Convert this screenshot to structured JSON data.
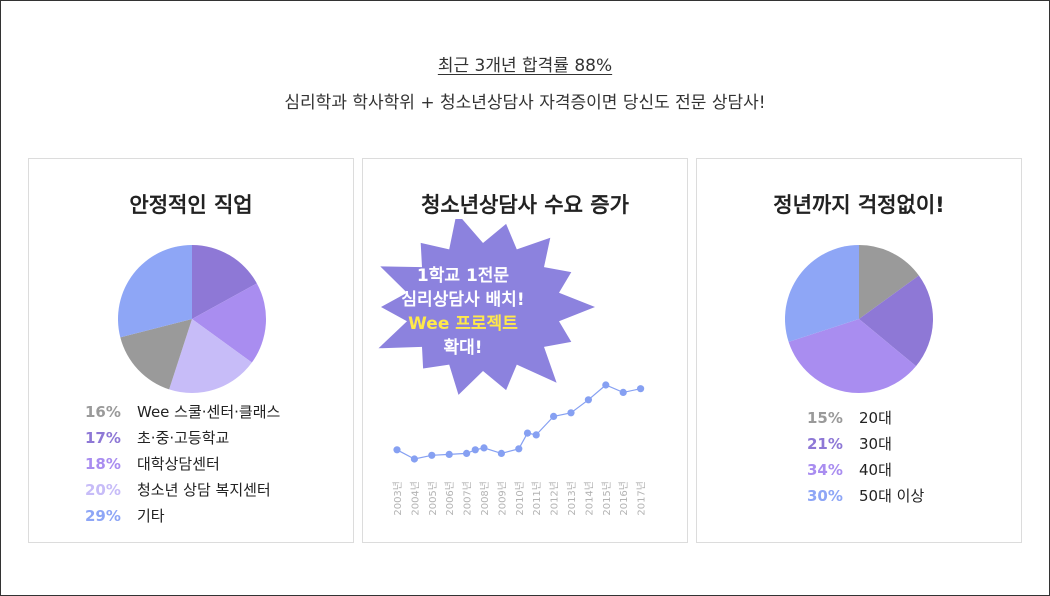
{
  "header": {
    "line1": "최근 3개년 합격률 88%",
    "line2": "심리학과 학사학위 + 청소년상담사 자격증이면 당신도 전문 상담사!"
  },
  "panels": [
    {
      "title": "안정적인 직업"
    },
    {
      "title": "청소년상담사 수요 증가"
    },
    {
      "title": "정년까지 걱정없이!"
    }
  ],
  "burst": {
    "lines": [
      "1학교 1전문",
      "심리상담사 배치!",
      "Wee 프로젝트",
      "확대!"
    ],
    "fill": "#8c82de",
    "highlight": "#ffe94a"
  },
  "chart_data": [
    {
      "type": "pie",
      "title": "",
      "slices": [
        {
          "label": "Wee 스쿨·센터·클래스",
          "value": 16,
          "pct_label": "16%",
          "color": "#9a9a9a"
        },
        {
          "label": "초·중·고등학교",
          "value": 17,
          "pct_label": "17%",
          "color": "#8e78d6"
        },
        {
          "label": "대학상담센터",
          "value": 18,
          "pct_label": "18%",
          "color": "#a98df0"
        },
        {
          "label": "청소년 상담 복지센터",
          "value": 20,
          "pct_label": "20%",
          "color": "#c7bcf8"
        },
        {
          "label": "기타",
          "value": 29,
          "pct_label": "29%",
          "color": "#8ea6f6"
        }
      ]
    },
    {
      "type": "line",
      "title": "",
      "categories": [
        "2003년",
        "2004년",
        "2005년",
        "2006년",
        "2007년",
        "2008년",
        "2009년",
        "2010년",
        "2011년",
        "2012년",
        "2013년",
        "2014년",
        "2015년",
        "2016년",
        "2017년"
      ],
      "x": [
        2003,
        2004,
        2005,
        2006,
        2007,
        2007.5,
        2008,
        2009,
        2010,
        2010.5,
        2011,
        2012,
        2013,
        2014,
        2015,
        2016,
        2017
      ],
      "series": [
        {
          "values": [
            10,
            0,
            4,
            5,
            6,
            10,
            12,
            6,
            11,
            28,
            26,
            46,
            50,
            64,
            80,
            72,
            76
          ]
        }
      ],
      "line_color": "#86a0f2",
      "grid": false
    },
    {
      "type": "pie",
      "title": "",
      "slices": [
        {
          "label": "20대",
          "value": 15,
          "pct_label": "15%",
          "color": "#9a9a9a"
        },
        {
          "label": "30대",
          "value": 21,
          "pct_label": "21%",
          "color": "#8e78d6"
        },
        {
          "label": "40대",
          "value": 34,
          "pct_label": "34%",
          "color": "#a98df0"
        },
        {
          "label": "50대 이상",
          "value": 30,
          "pct_label": "30%",
          "color": "#8ea6f6"
        }
      ]
    }
  ]
}
